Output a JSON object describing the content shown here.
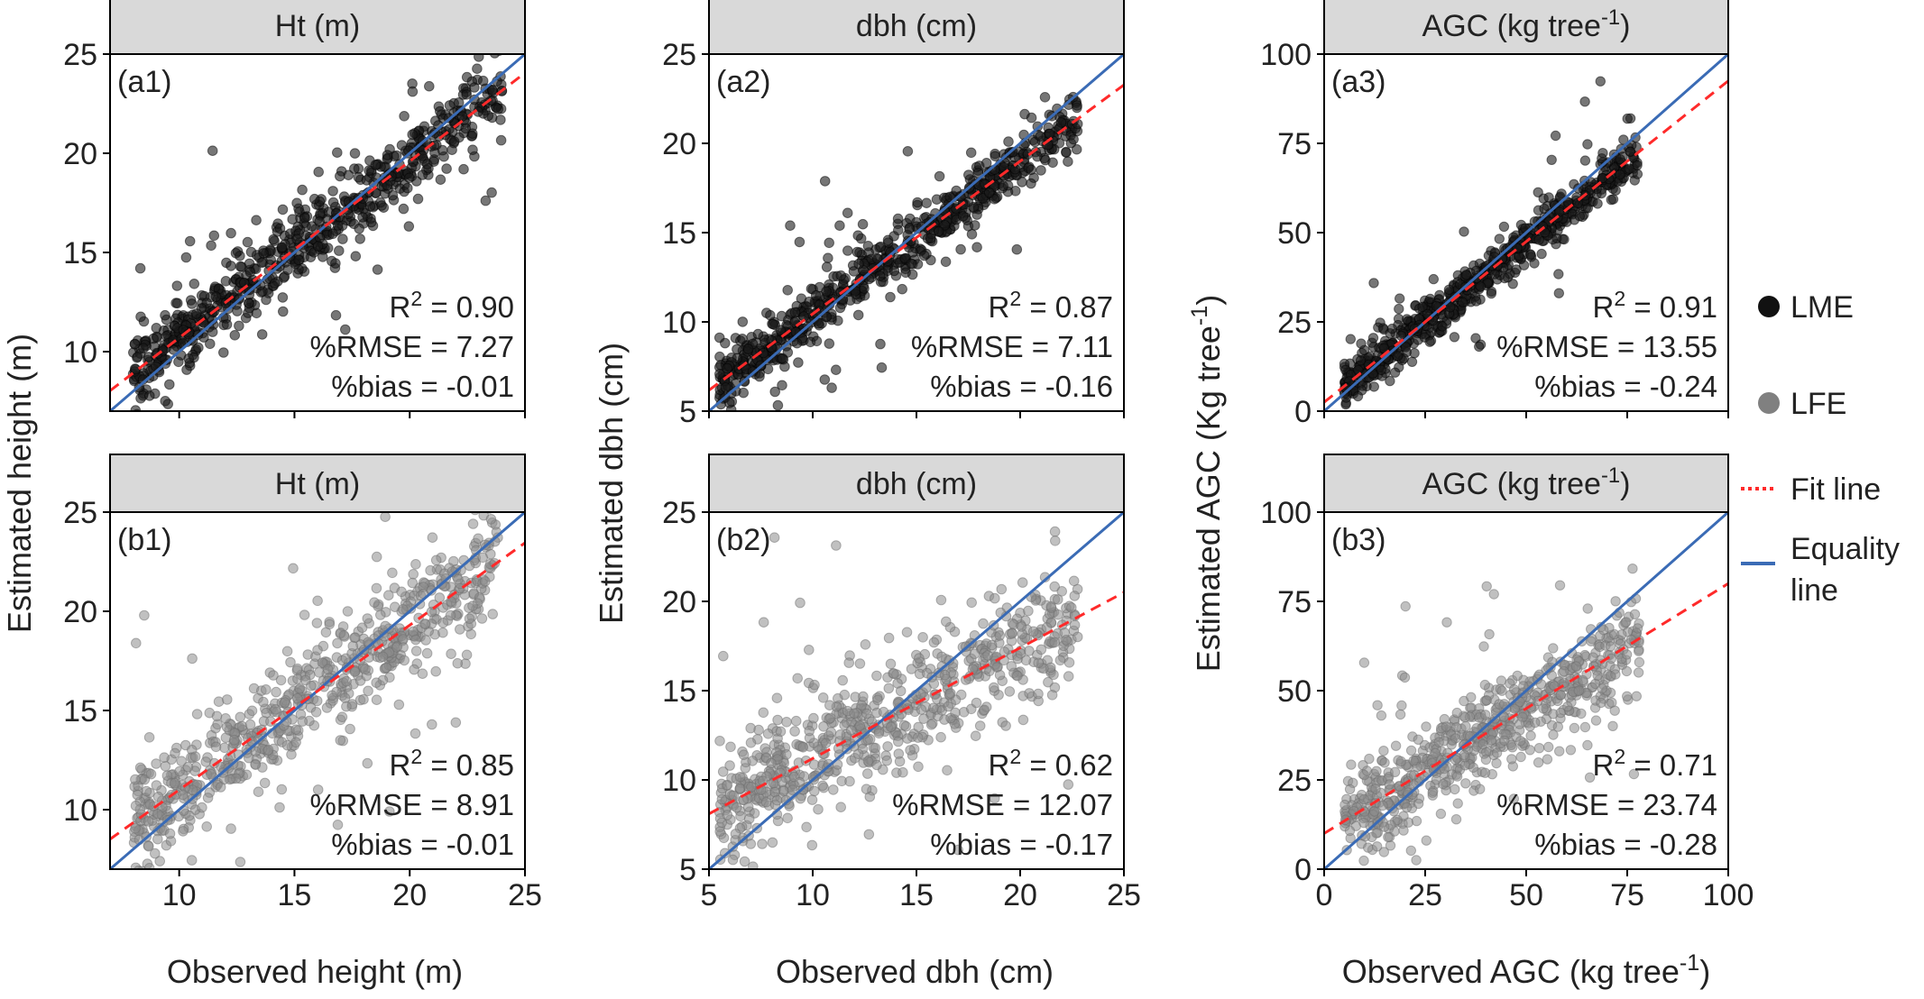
{
  "figure": {
    "x_titles": [
      "Observed height (m)",
      "Observed dbh (cm)",
      "Observed AGC (kg tree⁻¹)"
    ],
    "y_titles": [
      "Estimated height (m)",
      "Estimated dbh (cm)",
      "Estimated AGC (Kg tree⁻¹)"
    ]
  },
  "legend": {
    "items": [
      {
        "label": "LME",
        "kind": "point",
        "color": "#111111"
      },
      {
        "label": "LFE",
        "kind": "point",
        "color": "#808080"
      },
      {
        "label": "Fit line",
        "kind": "dotted",
        "color": "#ff2a2a"
      },
      {
        "label": "Equality line",
        "kind": "solid",
        "color": "#3a6bb5"
      }
    ]
  },
  "colors": {
    "lme": "#1a1a1a",
    "lfe": "#8c8c8c",
    "fit_line": "#ff2a2a",
    "equality_line": "#3a6bb5",
    "strip_fill": "#d9d9d9",
    "frame": "#000000"
  },
  "chart_data": [
    {
      "id": "a1",
      "type": "scatter",
      "model": "LME",
      "strip": "Ht (m)",
      "panel_label": "(a1)",
      "xlim": [
        7,
        25
      ],
      "ylim": [
        7,
        25
      ],
      "xticks": [
        10,
        15,
        20,
        25
      ],
      "yticks": [
        10,
        15,
        20,
        25
      ],
      "stats": [
        "R² = 0.90",
        "%RMSE = 7.27",
        "%bias = -0.01"
      ],
      "fit": {
        "slope": 0.89,
        "intercept": 1.8
      },
      "cloud": {
        "xmin": 8,
        "xmax": 24,
        "spread": 0.9,
        "n": 700,
        "outlier_frac": 0.07
      }
    },
    {
      "id": "a2",
      "type": "scatter",
      "model": "LME",
      "strip": "dbh (cm)",
      "panel_label": "(a2)",
      "xlim": [
        5,
        25
      ],
      "ylim": [
        5,
        25
      ],
      "xticks": [
        5,
        10,
        15,
        20,
        25
      ],
      "yticks": [
        5,
        10,
        15,
        20,
        25
      ],
      "stats": [
        "R² = 0.87",
        "%RMSE = 7.11",
        "%bias = -0.16"
      ],
      "fit": {
        "slope": 0.855,
        "intercept": 1.9
      },
      "cloud": {
        "xmin": 5.5,
        "xmax": 22.8,
        "spread": 0.75,
        "n": 700,
        "outlier_frac": 0.07
      }
    },
    {
      "id": "a3",
      "type": "scatter",
      "model": "LME",
      "strip": "AGC (kg tree⁻¹)",
      "panel_label": "(a3)",
      "xlim": [
        0,
        100
      ],
      "ylim": [
        0,
        100
      ],
      "xticks": [
        0,
        25,
        50,
        75,
        100
      ],
      "yticks": [
        0,
        25,
        50,
        75,
        100
      ],
      "stats": [
        "R² = 0.91",
        "%RMSE = 13.55",
        "%bias = -0.24"
      ],
      "fit": {
        "slope": 0.9,
        "intercept": 2.5
      },
      "cloud": {
        "xmin": 5,
        "xmax": 78,
        "spread": 3.2,
        "n": 700,
        "outlier_frac": 0.07
      }
    },
    {
      "id": "b1",
      "type": "scatter",
      "model": "LFE",
      "strip": "Ht (m)",
      "panel_label": "(b1)",
      "xlim": [
        7,
        25
      ],
      "ylim": [
        7,
        25
      ],
      "xticks": [
        10,
        15,
        20,
        25
      ],
      "yticks": [
        10,
        15,
        20,
        25
      ],
      "stats": [
        "R² = 0.85",
        "%RMSE = 8.91",
        "%bias = -0.01"
      ],
      "fit": {
        "slope": 0.83,
        "intercept": 2.7
      },
      "cloud": {
        "xmin": 8,
        "xmax": 24,
        "spread": 1.3,
        "n": 700,
        "outlier_frac": 0.08
      }
    },
    {
      "id": "b2",
      "type": "scatter",
      "model": "LFE",
      "strip": "dbh (cm)",
      "panel_label": "(b2)",
      "xlim": [
        5,
        25
      ],
      "ylim": [
        5,
        25
      ],
      "xticks": [
        5,
        10,
        15,
        20,
        25
      ],
      "yticks": [
        5,
        10,
        15,
        20,
        25
      ],
      "stats": [
        "R² = 0.62",
        "%RMSE = 12.07",
        "%bias = -0.17"
      ],
      "fit": {
        "slope": 0.62,
        "intercept": 5.0
      },
      "cloud": {
        "xmin": 5.5,
        "xmax": 22.8,
        "spread": 1.6,
        "n": 700,
        "outlier_frac": 0.07
      }
    },
    {
      "id": "b3",
      "type": "scatter",
      "model": "LFE",
      "strip": "AGC (kg tree⁻¹)",
      "panel_label": "(b3)",
      "xlim": [
        0,
        100
      ],
      "ylim": [
        0,
        100
      ],
      "xticks": [
        0,
        25,
        50,
        75,
        100
      ],
      "yticks": [
        0,
        25,
        50,
        75,
        100
      ],
      "stats": [
        "R² = 0.71",
        "%RMSE = 23.74",
        "%bias = -0.28"
      ],
      "fit": {
        "slope": 0.7,
        "intercept": 10.0
      },
      "cloud": {
        "xmin": 5,
        "xmax": 78,
        "spread": 6.5,
        "n": 700,
        "outlier_frac": 0.07
      }
    }
  ]
}
